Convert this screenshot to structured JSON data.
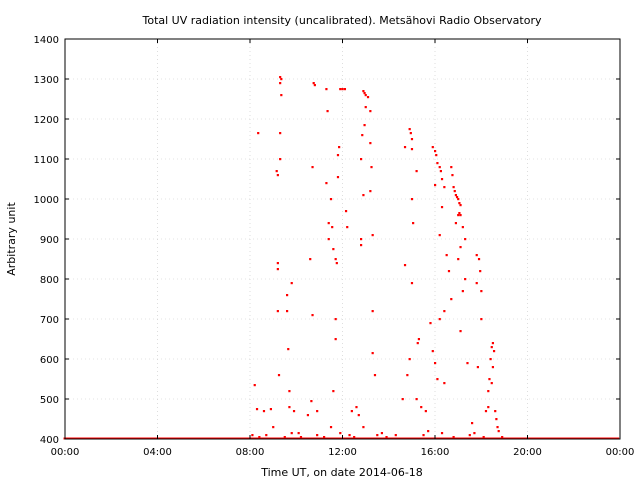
{
  "chart_data": {
    "type": "scatter",
    "title": "Total UV radiation intensity (uncalibrated). Metsähovi Radio Observatory",
    "xlabel": "Time UT, on date 2014-06-18",
    "ylabel": "Arbitrary unit",
    "xlim": [
      0,
      24
    ],
    "ylim": [
      400,
      1400
    ],
    "x_ticks": [
      {
        "value": 0,
        "label": "00:00"
      },
      {
        "value": 4,
        "label": "04:00"
      },
      {
        "value": 8,
        "label": "08:00"
      },
      {
        "value": 12,
        "label": "12:00"
      },
      {
        "value": 16,
        "label": "16:00"
      },
      {
        "value": 20,
        "label": "20:00"
      },
      {
        "value": 24,
        "label": "00:00"
      }
    ],
    "y_ticks": [
      {
        "value": 400,
        "label": "400"
      },
      {
        "value": 500,
        "label": "500"
      },
      {
        "value": 600,
        "label": "600"
      },
      {
        "value": 700,
        "label": "700"
      },
      {
        "value": 800,
        "label": "800"
      },
      {
        "value": 900,
        "label": "900"
      },
      {
        "value": 1000,
        "label": "1000"
      },
      {
        "value": 1100,
        "label": "1100"
      },
      {
        "value": 1200,
        "label": "1200"
      },
      {
        "value": 1300,
        "label": "1300"
      },
      {
        "value": 1400,
        "label": "1400"
      }
    ],
    "grid": true,
    "marker_color": "#ff0000",
    "series": [
      {
        "points": [
          [
            8.2,
            535
          ],
          [
            8.35,
            1165
          ],
          [
            8.3,
            475
          ],
          [
            8.6,
            470
          ],
          [
            8.9,
            475
          ],
          [
            9.0,
            430
          ],
          [
            9.15,
            1070
          ],
          [
            9.2,
            1060
          ],
          [
            9.2,
            840
          ],
          [
            9.2,
            825
          ],
          [
            9.2,
            720
          ],
          [
            9.25,
            560
          ],
          [
            9.3,
            1305
          ],
          [
            9.3,
            1290
          ],
          [
            9.35,
            1300
          ],
          [
            9.3,
            1165
          ],
          [
            9.3,
            1100
          ],
          [
            9.35,
            1260
          ],
          [
            9.6,
            760
          ],
          [
            9.6,
            720
          ],
          [
            9.65,
            625
          ],
          [
            9.7,
            520
          ],
          [
            9.7,
            480
          ],
          [
            9.8,
            790
          ],
          [
            9.9,
            470
          ],
          [
            10.6,
            850
          ],
          [
            10.7,
            710
          ],
          [
            10.7,
            1080
          ],
          [
            10.75,
            1290
          ],
          [
            10.8,
            1285
          ],
          [
            10.65,
            495
          ],
          [
            10.5,
            460
          ],
          [
            10.9,
            470
          ],
          [
            11.3,
            1275
          ],
          [
            11.35,
            1220
          ],
          [
            11.3,
            1040
          ],
          [
            11.4,
            940
          ],
          [
            11.4,
            900
          ],
          [
            11.5,
            1000
          ],
          [
            11.55,
            930
          ],
          [
            11.6,
            875
          ],
          [
            11.7,
            850
          ],
          [
            11.75,
            840
          ],
          [
            11.8,
            1055
          ],
          [
            11.8,
            1110
          ],
          [
            11.85,
            1130
          ],
          [
            11.9,
            1275
          ],
          [
            12.0,
            1275
          ],
          [
            12.1,
            1275
          ],
          [
            11.7,
            700
          ],
          [
            11.7,
            650
          ],
          [
            11.6,
            520
          ],
          [
            11.5,
            430
          ],
          [
            12.15,
            970
          ],
          [
            12.2,
            930
          ],
          [
            12.4,
            470
          ],
          [
            12.6,
            480
          ],
          [
            12.7,
            460
          ],
          [
            12.9,
            1270
          ],
          [
            12.95,
            1265
          ],
          [
            13.0,
            1260
          ],
          [
            13.1,
            1255
          ],
          [
            13.0,
            1230
          ],
          [
            12.95,
            1185
          ],
          [
            12.85,
            1160
          ],
          [
            12.8,
            1100
          ],
          [
            12.9,
            1010
          ],
          [
            12.8,
            900
          ],
          [
            12.8,
            885
          ],
          [
            13.2,
            1220
          ],
          [
            13.2,
            1140
          ],
          [
            13.25,
            1080
          ],
          [
            13.2,
            1020
          ],
          [
            13.3,
            910
          ],
          [
            13.3,
            720
          ],
          [
            13.3,
            615
          ],
          [
            13.4,
            560
          ],
          [
            12.9,
            430
          ],
          [
            14.9,
            1175
          ],
          [
            14.95,
            1165
          ],
          [
            15.0,
            1150
          ],
          [
            14.7,
            1130
          ],
          [
            15.0,
            1125
          ],
          [
            15.2,
            1070
          ],
          [
            15.0,
            1000
          ],
          [
            15.05,
            940
          ],
          [
            14.7,
            835
          ],
          [
            15.0,
            790
          ],
          [
            15.3,
            650
          ],
          [
            15.25,
            640
          ],
          [
            14.9,
            600
          ],
          [
            14.8,
            560
          ],
          [
            14.6,
            500
          ],
          [
            15.2,
            500
          ],
          [
            15.4,
            480
          ],
          [
            15.6,
            470
          ],
          [
            15.9,
            1130
          ],
          [
            16.0,
            1120
          ],
          [
            16.05,
            1110
          ],
          [
            16.1,
            1090
          ],
          [
            16.2,
            1080
          ],
          [
            16.25,
            1070
          ],
          [
            16.3,
            1050
          ],
          [
            16.4,
            1030
          ],
          [
            16.0,
            1035
          ],
          [
            16.3,
            980
          ],
          [
            16.2,
            910
          ],
          [
            16.5,
            860
          ],
          [
            16.6,
            820
          ],
          [
            16.7,
            750
          ],
          [
            16.4,
            720
          ],
          [
            16.2,
            700
          ],
          [
            15.8,
            690
          ],
          [
            15.9,
            620
          ],
          [
            16.0,
            590
          ],
          [
            16.1,
            550
          ],
          [
            16.4,
            540
          ],
          [
            16.7,
            1080
          ],
          [
            16.75,
            1060
          ],
          [
            16.8,
            1030
          ],
          [
            16.85,
            1020
          ],
          [
            16.9,
            1010
          ],
          [
            16.95,
            1005
          ],
          [
            17.0,
            1000
          ],
          [
            17.05,
            990
          ],
          [
            17.1,
            985
          ],
          [
            16.9,
            940
          ],
          [
            17.0,
            960
          ],
          [
            17.05,
            965
          ],
          [
            17.1,
            960
          ],
          [
            17.2,
            930
          ],
          [
            17.3,
            900
          ],
          [
            17.1,
            880
          ],
          [
            17.0,
            850
          ],
          [
            17.3,
            800
          ],
          [
            17.2,
            770
          ],
          [
            17.1,
            670
          ],
          [
            17.4,
            590
          ],
          [
            17.6,
            440
          ],
          [
            17.8,
            860
          ],
          [
            17.9,
            850
          ],
          [
            17.95,
            820
          ],
          [
            17.8,
            790
          ],
          [
            18.0,
            770
          ],
          [
            18.0,
            700
          ],
          [
            17.85,
            580
          ],
          [
            18.2,
            470
          ],
          [
            18.3,
            520
          ],
          [
            18.35,
            550
          ],
          [
            18.4,
            600
          ],
          [
            18.45,
            630
          ],
          [
            18.5,
            640
          ],
          [
            18.55,
            620
          ],
          [
            18.5,
            580
          ],
          [
            18.45,
            540
          ],
          [
            18.3,
            480
          ],
          [
            18.6,
            470
          ],
          [
            18.65,
            450
          ],
          [
            18.7,
            430
          ],
          [
            18.75,
            420
          ],
          [
            8.1,
            410
          ],
          [
            8.4,
            405
          ],
          [
            8.7,
            410
          ],
          [
            9.5,
            405
          ],
          [
            10.2,
            405
          ],
          [
            10.9,
            410
          ],
          [
            11.2,
            405
          ],
          [
            12.5,
            405
          ],
          [
            13.5,
            410
          ],
          [
            13.9,
            405
          ],
          [
            14.3,
            410
          ],
          [
            15.5,
            410
          ],
          [
            16.8,
            405
          ],
          [
            17.5,
            410
          ],
          [
            18.1,
            405
          ],
          [
            18.9,
            405
          ],
          [
            10.1,
            415
          ],
          [
            12.3,
            410
          ],
          [
            13.7,
            415
          ],
          [
            15.7,
            420
          ],
          [
            17.7,
            415
          ],
          [
            9.8,
            415
          ],
          [
            11.9,
            415
          ],
          [
            16.3,
            415
          ]
        ]
      }
    ]
  }
}
